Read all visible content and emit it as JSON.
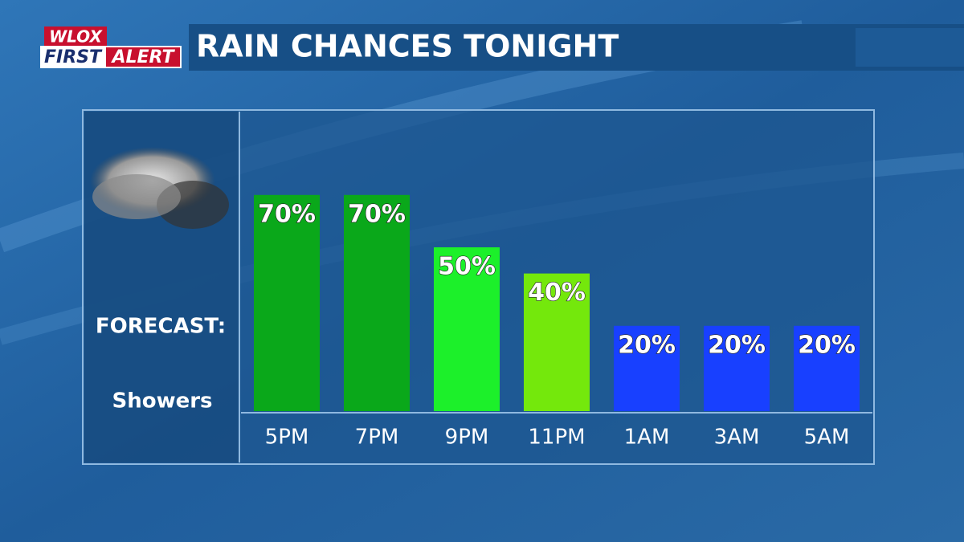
{
  "chart_data": {
    "type": "bar",
    "title": "RAIN CHANCES TONIGHT",
    "logo": {
      "top": "WLOX",
      "left": "FIRST",
      "right": "ALERT"
    },
    "forecast_label": "FORECAST:",
    "forecast": "Showers",
    "categories": [
      "5PM",
      "7PM",
      "9PM",
      "11PM",
      "1AM",
      "3AM",
      "5AM"
    ],
    "values": [
      70,
      70,
      50,
      40,
      20,
      20,
      20
    ],
    "value_labels": [
      "70%",
      "70%",
      "50%",
      "40%",
      "20%",
      "20%",
      "20%"
    ],
    "colors": [
      "#0aa81a",
      "#0aa81a",
      "#1cf02a",
      "#74e80c",
      "#1840ff",
      "#1840ff",
      "#1840ff"
    ]
  }
}
